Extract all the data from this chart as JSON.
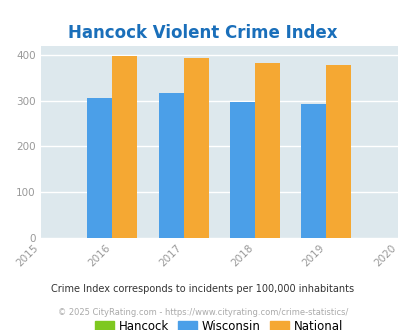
{
  "title": "Hancock Violent Crime Index",
  "title_color": "#1a6fba",
  "title_fontsize": 12,
  "years": [
    2015,
    2016,
    2017,
    2018,
    2019,
    2020
  ],
  "data_years": [
    2016,
    2017,
    2018,
    2019
  ],
  "hancock": [
    0,
    0,
    0,
    0
  ],
  "wisconsin": [
    306,
    318,
    297,
    294
  ],
  "national": [
    398,
    394,
    383,
    379
  ],
  "bar_width": 0.35,
  "colors": {
    "hancock": "#7ec820",
    "wisconsin": "#4b9fe8",
    "national": "#f5a833"
  },
  "ylim": [
    0,
    420
  ],
  "yticks": [
    0,
    100,
    200,
    300,
    400
  ],
  "plot_bg_color": "#dde8ed",
  "grid_color": "#ffffff",
  "legend_labels": [
    "Hancock",
    "Wisconsin",
    "National"
  ],
  "footnote": "Crime Index corresponds to incidents per 100,000 inhabitants",
  "copyright": "© 2025 CityRating.com - https://www.cityrating.com/crime-statistics/"
}
